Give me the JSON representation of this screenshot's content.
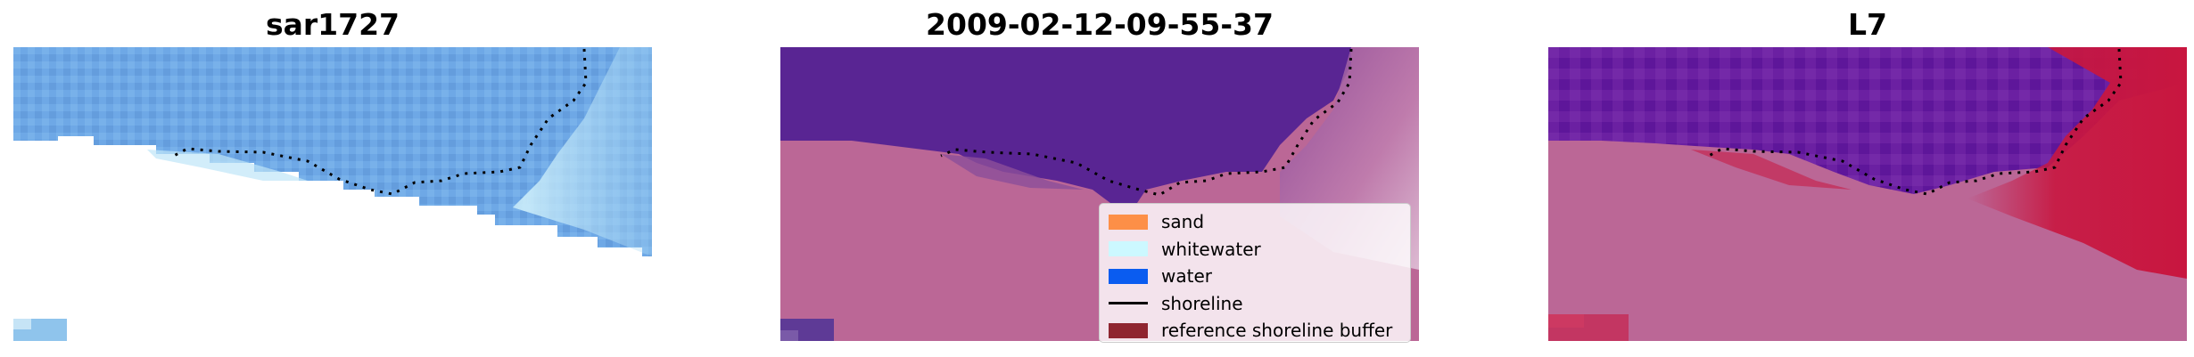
{
  "panels": [
    {
      "title": "sar1727"
    },
    {
      "title": "2009-02-12-09-55-37"
    },
    {
      "title": "L7"
    }
  ],
  "legend": {
    "items": [
      {
        "label": "sand",
        "kind": "patch",
        "color": "#fd8f47"
      },
      {
        "label": "whitewater",
        "kind": "patch",
        "color": "#ccf8ff"
      },
      {
        "label": "water",
        "kind": "patch",
        "color": "#0a5cf0"
      },
      {
        "label": "shoreline",
        "kind": "line",
        "color": "#000000"
      },
      {
        "label": "reference shoreline buffer",
        "kind": "patch",
        "color": "#8f2530"
      }
    ]
  },
  "colors": {
    "rgb_water": "#6aa6e3",
    "classified_water": "#592593",
    "classified_land": "#bb6796",
    "l7_water": "#6b1fa0",
    "l7_land": "#bb6796",
    "l7_red": "#c8163f"
  }
}
